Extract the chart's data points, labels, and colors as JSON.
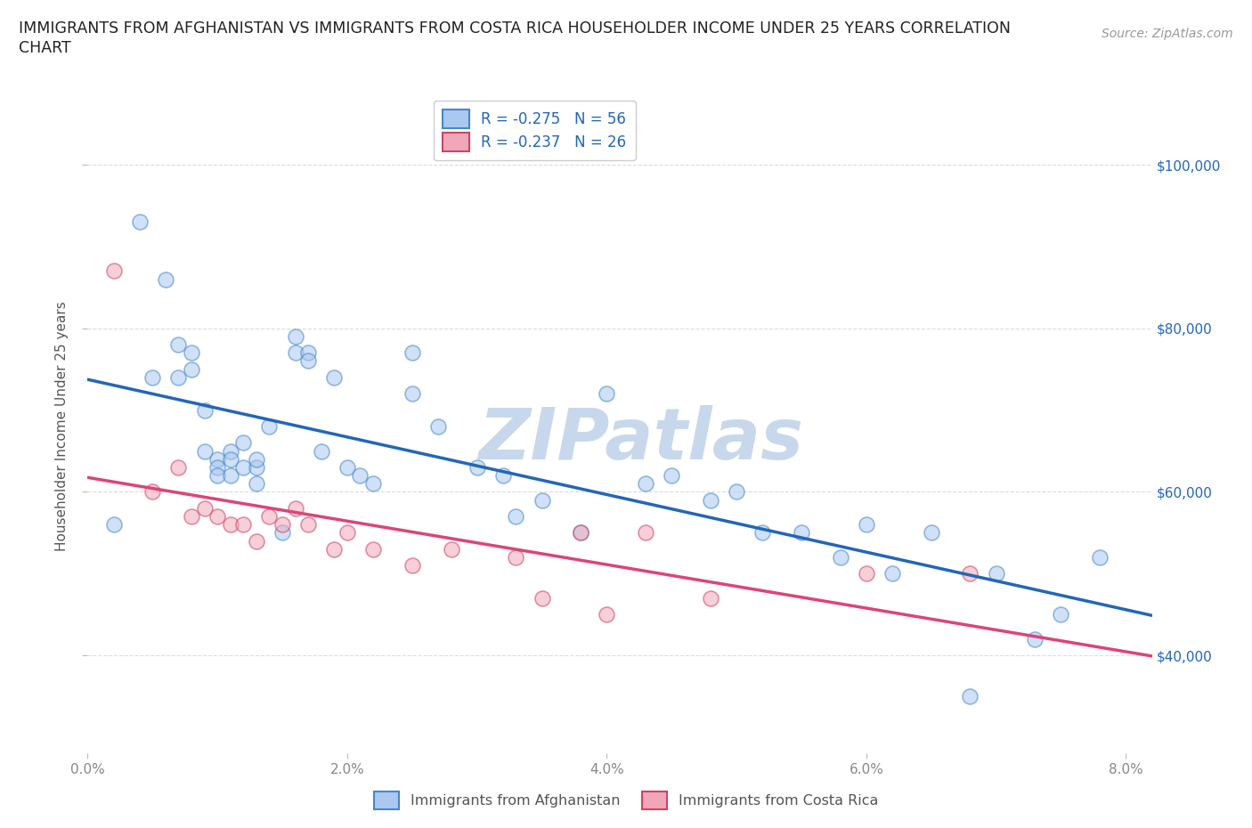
{
  "title_line1": "IMMIGRANTS FROM AFGHANISTAN VS IMMIGRANTS FROM COSTA RICA HOUSEHOLDER INCOME UNDER 25 YEARS CORRELATION",
  "title_line2": "CHART",
  "source": "Source: ZipAtlas.com",
  "ylabel": "Householder Income Under 25 years",
  "legend_r1": "R = -0.275   N = 56",
  "legend_r2": "R = -0.237   N = 26",
  "afghanistan_x": [
    0.002,
    0.004,
    0.005,
    0.006,
    0.007,
    0.007,
    0.008,
    0.008,
    0.009,
    0.009,
    0.01,
    0.01,
    0.01,
    0.011,
    0.011,
    0.011,
    0.012,
    0.012,
    0.013,
    0.013,
    0.013,
    0.014,
    0.015,
    0.016,
    0.016,
    0.017,
    0.017,
    0.018,
    0.019,
    0.02,
    0.021,
    0.022,
    0.025,
    0.025,
    0.027,
    0.03,
    0.032,
    0.033,
    0.035,
    0.038,
    0.04,
    0.043,
    0.045,
    0.048,
    0.05,
    0.052,
    0.055,
    0.058,
    0.06,
    0.062,
    0.065,
    0.068,
    0.07,
    0.073,
    0.075,
    0.078
  ],
  "afghanistan_y": [
    56000,
    93000,
    74000,
    86000,
    74000,
    78000,
    75000,
    77000,
    70000,
    65000,
    64000,
    63000,
    62000,
    65000,
    64000,
    62000,
    66000,
    63000,
    63000,
    61000,
    64000,
    68000,
    55000,
    79000,
    77000,
    77000,
    76000,
    65000,
    74000,
    63000,
    62000,
    61000,
    77000,
    72000,
    68000,
    63000,
    62000,
    57000,
    59000,
    55000,
    72000,
    61000,
    62000,
    59000,
    60000,
    55000,
    55000,
    52000,
    56000,
    50000,
    55000,
    35000,
    50000,
    42000,
    45000,
    52000
  ],
  "costarica_x": [
    0.002,
    0.005,
    0.007,
    0.008,
    0.009,
    0.01,
    0.011,
    0.012,
    0.013,
    0.014,
    0.015,
    0.016,
    0.017,
    0.019,
    0.02,
    0.022,
    0.025,
    0.028,
    0.033,
    0.035,
    0.038,
    0.04,
    0.043,
    0.048,
    0.06,
    0.068
  ],
  "costarica_y": [
    87000,
    60000,
    63000,
    57000,
    58000,
    57000,
    56000,
    56000,
    54000,
    57000,
    56000,
    58000,
    56000,
    53000,
    55000,
    53000,
    51000,
    53000,
    52000,
    47000,
    55000,
    45000,
    55000,
    47000,
    50000,
    50000
  ],
  "afghanistan_face": "#aac8f0",
  "afghanistan_edge": "#4488cc",
  "costarica_face": "#f0a8b8",
  "costarica_edge": "#cc4466",
  "line_afg_color": "#2266bb",
  "line_cr_color": "#dd4477",
  "xlim": [
    0.0,
    0.082
  ],
  "ylim": [
    28000,
    108000
  ],
  "yticks": [
    40000,
    60000,
    80000,
    100000
  ],
  "ytick_labels": [
    "$40,000",
    "$60,000",
    "$80,000",
    "$100,000"
  ],
  "xticks": [
    0.0,
    0.02,
    0.04,
    0.06,
    0.08
  ],
  "xtick_labels": [
    "0.0%",
    "2.0%",
    "4.0%",
    "6.0%",
    "8.0%"
  ],
  "watermark": "ZIPatlas",
  "watermark_color": "#c8d8ec",
  "background_color": "#ffffff",
  "grid_color": "#cccccc",
  "dot_size": 150,
  "dot_alpha": 0.55,
  "dot_linewidth": 1.2
}
